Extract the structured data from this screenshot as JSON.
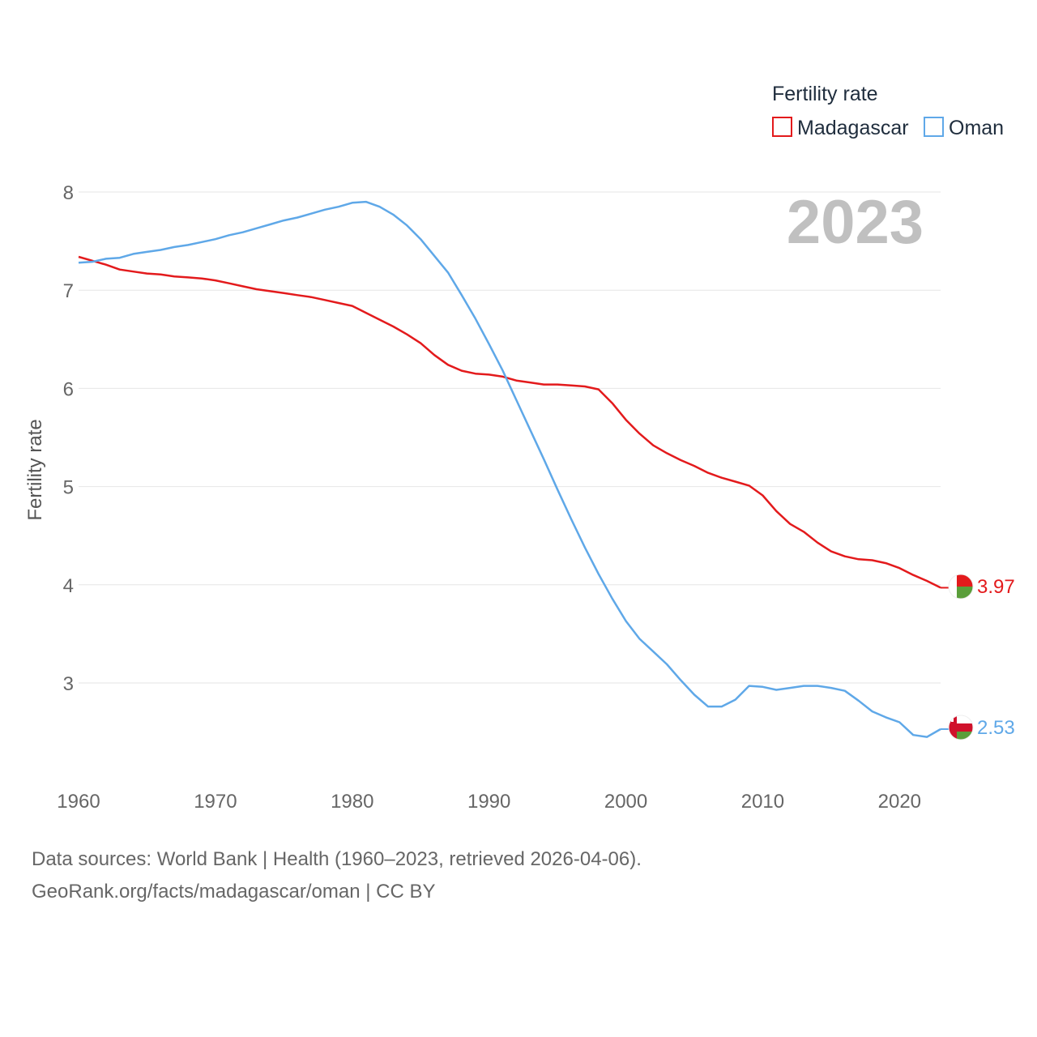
{
  "legend": {
    "title": "Fertility rate",
    "items": [
      {
        "label": "Madagascar",
        "color": "#e31a1c"
      },
      {
        "label": "Oman",
        "color": "#5fa8e8"
      }
    ]
  },
  "watermark_year": "2023",
  "end_labels": {
    "madagascar": "3.97",
    "oman": "2.53"
  },
  "footer": {
    "line1": "Data sources: World Bank | Health (1960–2023, retrieved 2026-04-06).",
    "line2": "GeoRank.org/facts/madagascar/oman | CC BY"
  },
  "chart_data": {
    "type": "line",
    "title": "Fertility rate",
    "xlabel": "",
    "ylabel": "Fertility rate",
    "xlim": [
      1960,
      2023
    ],
    "ylim": [
      2.1,
      8.0
    ],
    "xticks": [
      1960,
      1970,
      1980,
      1990,
      2000,
      2010,
      2020
    ],
    "yticks": [
      3,
      4,
      5,
      6,
      7,
      8
    ],
    "grid": true,
    "legend_position": "top-right",
    "x": [
      1960,
      1961,
      1962,
      1963,
      1964,
      1965,
      1966,
      1967,
      1968,
      1969,
      1970,
      1971,
      1972,
      1973,
      1974,
      1975,
      1976,
      1977,
      1978,
      1979,
      1980,
      1981,
      1982,
      1983,
      1984,
      1985,
      1986,
      1987,
      1988,
      1989,
      1990,
      1991,
      1992,
      1993,
      1994,
      1995,
      1996,
      1997,
      1998,
      1999,
      2000,
      2001,
      2002,
      2003,
      2004,
      2005,
      2006,
      2007,
      2008,
      2009,
      2010,
      2011,
      2012,
      2013,
      2014,
      2015,
      2016,
      2017,
      2018,
      2019,
      2020,
      2021,
      2022,
      2023
    ],
    "series": [
      {
        "name": "Madagascar",
        "color": "#e31a1c",
        "values": [
          7.34,
          7.3,
          7.26,
          7.21,
          7.19,
          7.17,
          7.16,
          7.14,
          7.13,
          7.12,
          7.1,
          7.07,
          7.04,
          7.01,
          6.99,
          6.97,
          6.95,
          6.93,
          6.9,
          6.87,
          6.84,
          6.77,
          6.7,
          6.63,
          6.55,
          6.46,
          6.34,
          6.24,
          6.18,
          6.15,
          6.14,
          6.12,
          6.08,
          6.06,
          6.04,
          6.04,
          6.03,
          6.02,
          5.99,
          5.85,
          5.68,
          5.54,
          5.42,
          5.34,
          5.27,
          5.21,
          5.14,
          5.09,
          5.05,
          5.01,
          4.91,
          4.75,
          4.62,
          4.54,
          4.43,
          4.34,
          4.29,
          4.26,
          4.25,
          4.22,
          4.17,
          4.1,
          4.04,
          3.97
        ]
      },
      {
        "name": "Oman",
        "color": "#5fa8e8",
        "values": [
          7.28,
          7.29,
          7.32,
          7.33,
          7.37,
          7.39,
          7.41,
          7.44,
          7.46,
          7.49,
          7.52,
          7.56,
          7.59,
          7.63,
          7.67,
          7.71,
          7.74,
          7.78,
          7.82,
          7.85,
          7.89,
          7.9,
          7.85,
          7.77,
          7.66,
          7.52,
          7.35,
          7.18,
          6.95,
          6.71,
          6.45,
          6.18,
          5.88,
          5.58,
          5.28,
          4.97,
          4.67,
          4.38,
          4.11,
          3.86,
          3.63,
          3.45,
          3.32,
          3.19,
          3.03,
          2.88,
          2.76,
          2.76,
          2.83,
          2.97,
          2.96,
          2.93,
          2.95,
          2.97,
          2.97,
          2.95,
          2.92,
          2.82,
          2.71,
          2.65,
          2.6,
          2.47,
          2.45,
          2.53
        ]
      }
    ]
  }
}
